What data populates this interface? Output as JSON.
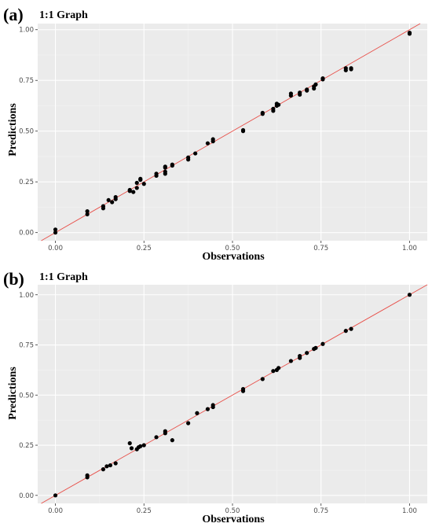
{
  "style": {
    "panel_background": "#ebebeb",
    "major_grid": "#ffffff",
    "minor_grid": "#f3f3f3",
    "point_color": "#000000",
    "reference_line_color": "#e8504a",
    "tick_text_color": "#4d4d4d"
  },
  "panels": [
    {
      "letter": "(a)",
      "title": "1:1 Graph",
      "xlabel": "Observations",
      "ylabel": "Predictions"
    },
    {
      "letter": "(b)",
      "title": "1:1 Graph",
      "xlabel": "Observations",
      "ylabel": "Predictions"
    }
  ],
  "chart_data": [
    {
      "type": "scatter",
      "title": "1:1 Graph",
      "xlabel": "Observations",
      "ylabel": "Predictions",
      "xlim": [
        -0.05,
        1.05
      ],
      "ylim": [
        -0.04,
        1.03
      ],
      "x_ticks": [
        0.0,
        0.25,
        0.5,
        0.75,
        1.0
      ],
      "x_tick_labels": [
        "0.00",
        "0.25",
        "0.50",
        "0.75",
        "1.00"
      ],
      "y_ticks": [
        0.0,
        0.25,
        0.5,
        0.75,
        1.0
      ],
      "y_tick_labels": [
        "0.00",
        "0.25",
        "0.50",
        "0.75",
        "1.00"
      ],
      "grid": true,
      "reference_line": {
        "slope": 1,
        "intercept": 0
      },
      "points": [
        [
          0.0,
          0.0
        ],
        [
          0.0,
          0.015
        ],
        [
          0.09,
          0.09
        ],
        [
          0.09,
          0.105
        ],
        [
          0.135,
          0.12
        ],
        [
          0.135,
          0.13
        ],
        [
          0.15,
          0.16
        ],
        [
          0.16,
          0.15
        ],
        [
          0.17,
          0.165
        ],
        [
          0.17,
          0.175
        ],
        [
          0.21,
          0.205
        ],
        [
          0.21,
          0.21
        ],
        [
          0.22,
          0.2
        ],
        [
          0.23,
          0.22
        ],
        [
          0.23,
          0.245
        ],
        [
          0.24,
          0.26
        ],
        [
          0.24,
          0.265
        ],
        [
          0.25,
          0.24
        ],
        [
          0.285,
          0.28
        ],
        [
          0.285,
          0.29
        ],
        [
          0.31,
          0.29
        ],
        [
          0.31,
          0.3
        ],
        [
          0.31,
          0.32
        ],
        [
          0.31,
          0.325
        ],
        [
          0.33,
          0.33
        ],
        [
          0.33,
          0.335
        ],
        [
          0.375,
          0.36
        ],
        [
          0.375,
          0.37
        ],
        [
          0.395,
          0.39
        ],
        [
          0.43,
          0.44
        ],
        [
          0.445,
          0.45
        ],
        [
          0.445,
          0.46
        ],
        [
          0.53,
          0.5
        ],
        [
          0.53,
          0.505
        ],
        [
          0.585,
          0.585
        ],
        [
          0.585,
          0.59
        ],
        [
          0.615,
          0.6
        ],
        [
          0.615,
          0.61
        ],
        [
          0.625,
          0.625
        ],
        [
          0.625,
          0.635
        ],
        [
          0.63,
          0.63
        ],
        [
          0.665,
          0.675
        ],
        [
          0.665,
          0.685
        ],
        [
          0.69,
          0.68
        ],
        [
          0.69,
          0.69
        ],
        [
          0.71,
          0.7
        ],
        [
          0.71,
          0.705
        ],
        [
          0.73,
          0.71
        ],
        [
          0.73,
          0.72
        ],
        [
          0.735,
          0.73
        ],
        [
          0.755,
          0.755
        ],
        [
          0.755,
          0.76
        ],
        [
          0.82,
          0.8
        ],
        [
          0.82,
          0.81
        ],
        [
          0.835,
          0.805
        ],
        [
          0.835,
          0.81
        ],
        [
          1.0,
          0.98
        ],
        [
          1.0,
          0.985
        ]
      ]
    },
    {
      "type": "scatter",
      "title": "1:1 Graph",
      "xlabel": "Observations",
      "ylabel": "Predictions",
      "xlim": [
        -0.05,
        1.05
      ],
      "ylim": [
        -0.04,
        1.05
      ],
      "x_ticks": [
        0.0,
        0.25,
        0.5,
        0.75,
        1.0
      ],
      "x_tick_labels": [
        "0.00",
        "0.25",
        "0.50",
        "0.75",
        "1.00"
      ],
      "y_ticks": [
        0.0,
        0.25,
        0.5,
        0.75,
        1.0
      ],
      "y_tick_labels": [
        "0.00",
        "0.25",
        "0.50",
        "0.75",
        "1.00"
      ],
      "grid": true,
      "reference_line": {
        "slope": 1,
        "intercept": 0
      },
      "points": [
        [
          0.0,
          0.0
        ],
        [
          0.09,
          0.09
        ],
        [
          0.09,
          0.1
        ],
        [
          0.135,
          0.13
        ],
        [
          0.145,
          0.145
        ],
        [
          0.155,
          0.15
        ],
        [
          0.17,
          0.16
        ],
        [
          0.21,
          0.26
        ],
        [
          0.215,
          0.235
        ],
        [
          0.23,
          0.23
        ],
        [
          0.235,
          0.24
        ],
        [
          0.24,
          0.245
        ],
        [
          0.25,
          0.25
        ],
        [
          0.285,
          0.29
        ],
        [
          0.31,
          0.31
        ],
        [
          0.31,
          0.32
        ],
        [
          0.33,
          0.275
        ],
        [
          0.375,
          0.36
        ],
        [
          0.4,
          0.41
        ],
        [
          0.43,
          0.43
        ],
        [
          0.445,
          0.44
        ],
        [
          0.445,
          0.45
        ],
        [
          0.53,
          0.52
        ],
        [
          0.53,
          0.53
        ],
        [
          0.585,
          0.58
        ],
        [
          0.615,
          0.62
        ],
        [
          0.625,
          0.625
        ],
        [
          0.63,
          0.635
        ],
        [
          0.665,
          0.67
        ],
        [
          0.69,
          0.685
        ],
        [
          0.69,
          0.695
        ],
        [
          0.71,
          0.71
        ],
        [
          0.73,
          0.73
        ],
        [
          0.735,
          0.735
        ],
        [
          0.755,
          0.755
        ],
        [
          0.82,
          0.82
        ],
        [
          0.835,
          0.83
        ],
        [
          1.0,
          1.0
        ]
      ]
    }
  ]
}
